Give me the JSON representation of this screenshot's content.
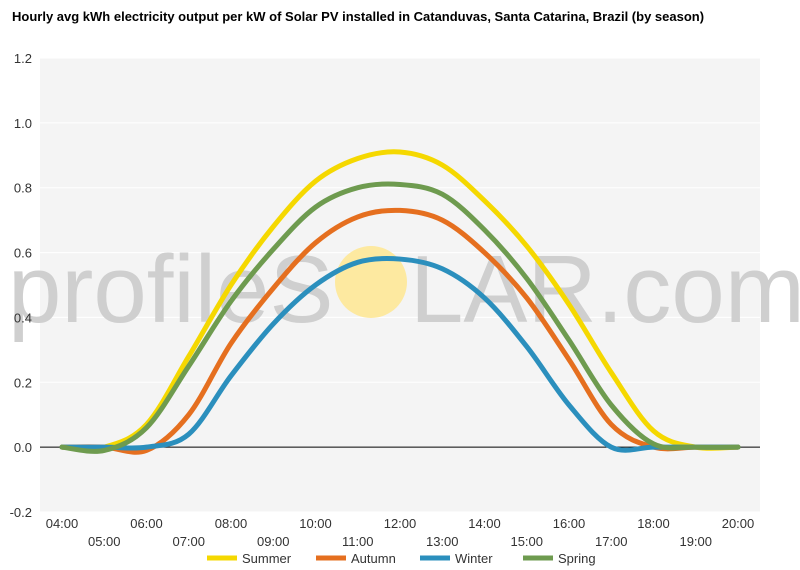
{
  "chart_data": {
    "type": "line",
    "title": "Hourly avg kWh electricity output per kW of Solar PV installed in Catanduvas, Santa Catarina, Brazil (by season)",
    "xlabel": "",
    "ylabel": "",
    "ylim": [
      -0.2,
      1.2
    ],
    "yticks": [
      "-0.2",
      "0.0",
      "0.2",
      "0.4",
      "0.6",
      "0.8",
      "1.0",
      "1.2"
    ],
    "categories": [
      "04:00",
      "05:00",
      "06:00",
      "07:00",
      "08:00",
      "09:00",
      "10:00",
      "11:00",
      "12:00",
      "13:00",
      "14:00",
      "15:00",
      "16:00",
      "17:00",
      "18:00",
      "19:00",
      "20:00"
    ],
    "grid": true,
    "legend": "bottom",
    "series": [
      {
        "name": "Summer",
        "color": "#f5d800",
        "values": [
          0.0,
          0.0,
          0.07,
          0.28,
          0.5,
          0.68,
          0.82,
          0.89,
          0.91,
          0.87,
          0.76,
          0.62,
          0.44,
          0.23,
          0.05,
          0.0,
          0.0
        ]
      },
      {
        "name": "Autumn",
        "color": "#e56f1f",
        "values": [
          0.0,
          0.0,
          -0.01,
          0.1,
          0.32,
          0.49,
          0.63,
          0.71,
          0.73,
          0.7,
          0.6,
          0.46,
          0.27,
          0.07,
          0.0,
          0.0,
          0.0
        ]
      },
      {
        "name": "Winter",
        "color": "#2b8fbd",
        "values": [
          0.0,
          0.0,
          0.0,
          0.04,
          0.22,
          0.38,
          0.5,
          0.57,
          0.58,
          0.55,
          0.46,
          0.31,
          0.13,
          0.0,
          0.0,
          0.0,
          0.0
        ]
      },
      {
        "name": "Spring",
        "color": "#6e9b4f",
        "values": [
          0.0,
          -0.01,
          0.06,
          0.25,
          0.45,
          0.61,
          0.74,
          0.8,
          0.81,
          0.78,
          0.67,
          0.52,
          0.33,
          0.13,
          0.01,
          0.0,
          0.0
        ]
      }
    ]
  },
  "watermark": {
    "left_text": "profileS",
    "right_text": "LAR.com",
    "sun_color": "#fde9a0"
  }
}
